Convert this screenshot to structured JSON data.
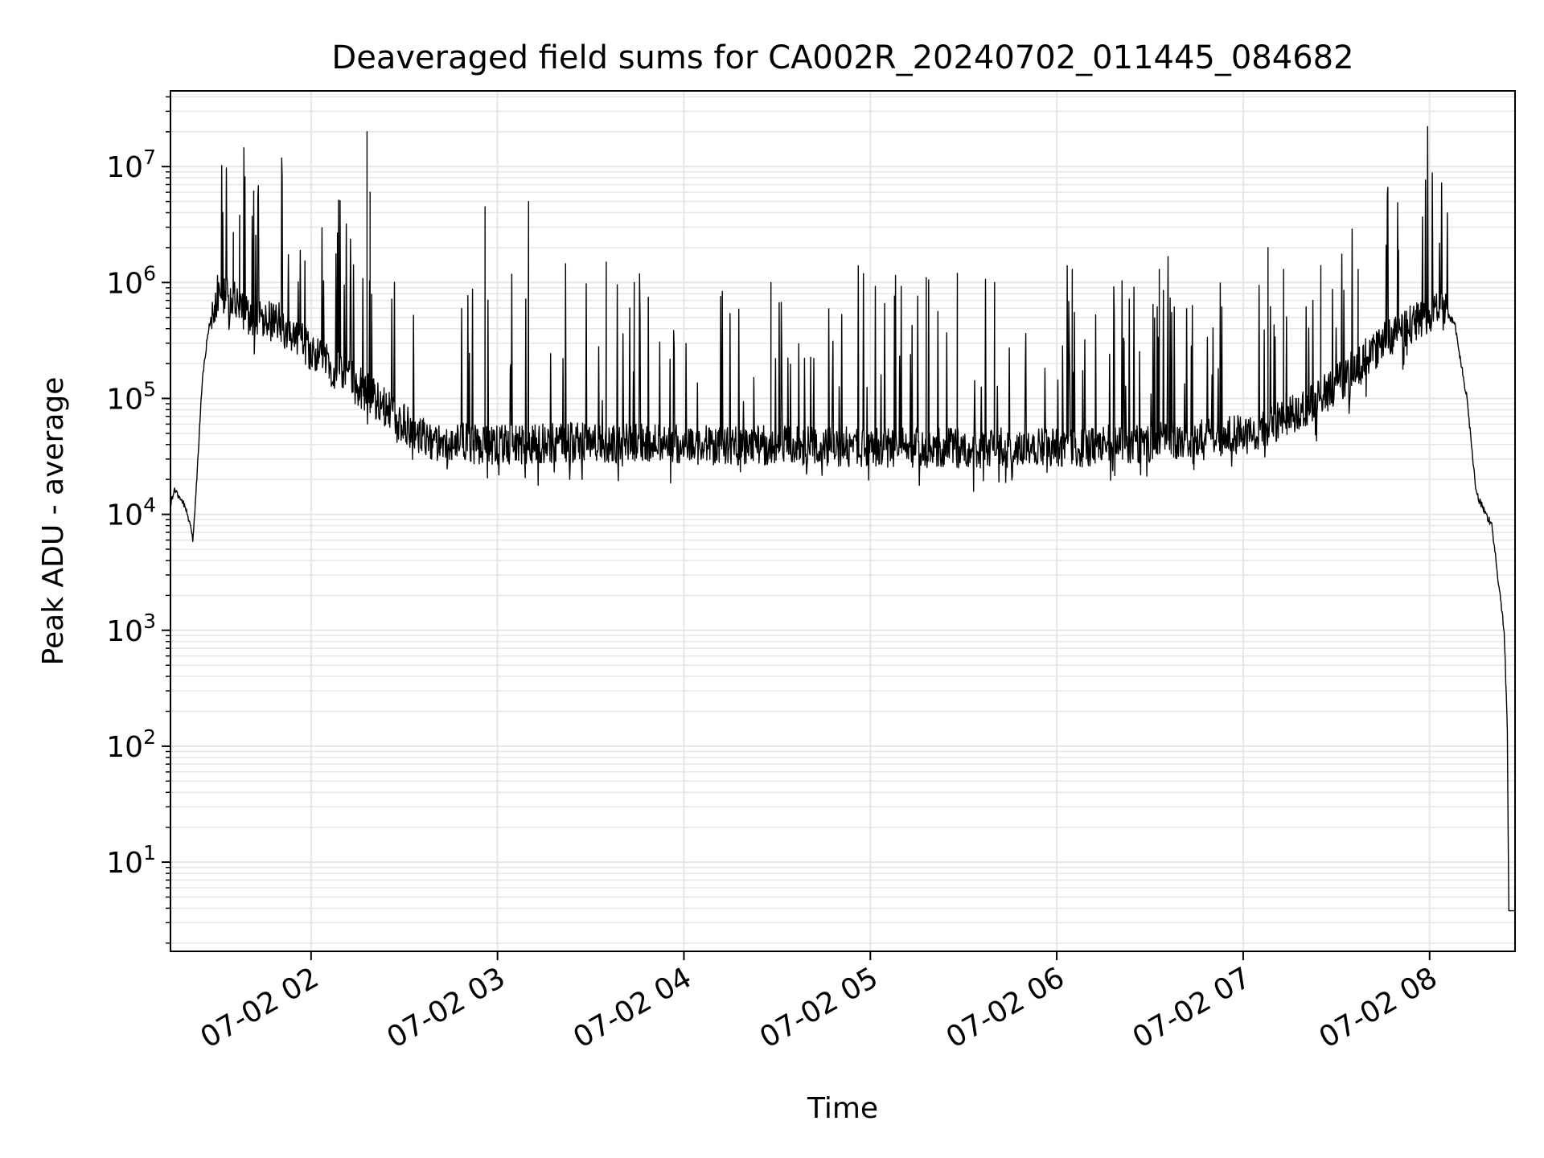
{
  "chart_data": {
    "type": "line",
    "title": "Deaveraged field sums for CA002R_20240702_011445_084682",
    "xlabel": "Time",
    "ylabel": "Peak ADU - average",
    "xscale": "time",
    "yscale": "log",
    "xlim": [
      "2024-07-02T01:14:45",
      "2024-07-02T08:27:30"
    ],
    "ylim": [
      1.7,
      45000000
    ],
    "grid": true,
    "legend": "none",
    "line_color": "#000000",
    "grid_color": "#e6e6e6",
    "x_ticks": [
      {
        "value": "2024-07-02T02:00:00",
        "label": "07-02 02"
      },
      {
        "value": "2024-07-02T03:00:00",
        "label": "07-02 03"
      },
      {
        "value": "2024-07-02T04:00:00",
        "label": "07-02 04"
      },
      {
        "value": "2024-07-02T05:00:00",
        "label": "07-02 05"
      },
      {
        "value": "2024-07-02T06:00:00",
        "label": "07-02 06"
      },
      {
        "value": "2024-07-02T07:00:00",
        "label": "07-02 07"
      },
      {
        "value": "2024-07-02T08:00:00",
        "label": "07-02 08"
      }
    ],
    "y_ticks": [
      {
        "value": 10,
        "base": "10",
        "exp": "1"
      },
      {
        "value": 100,
        "base": "10",
        "exp": "2"
      },
      {
        "value": 1000,
        "base": "10",
        "exp": "3"
      },
      {
        "value": 10000,
        "base": "10",
        "exp": "4"
      },
      {
        "value": 100000,
        "base": "10",
        "exp": "5"
      },
      {
        "value": 1000000,
        "base": "10",
        "exp": "6"
      },
      {
        "value": 10000000,
        "base": "10",
        "exp": "7"
      }
    ],
    "series": [
      {
        "baseline": [
          [
            "2024-07-02T01:14:45",
            12000
          ],
          [
            "2024-07-02T01:16:00",
            16000
          ],
          [
            "2024-07-02T01:18:00",
            14000
          ],
          [
            "2024-07-02T01:20:00",
            11000
          ],
          [
            "2024-07-02T01:22:00",
            6000
          ],
          [
            "2024-07-02T01:23:00",
            16000
          ],
          [
            "2024-07-02T01:25:00",
            150000
          ],
          [
            "2024-07-02T01:27:00",
            400000
          ],
          [
            "2024-07-02T01:30:00",
            800000
          ],
          [
            "2024-07-02T01:35:00",
            800000
          ],
          [
            "2024-07-02T01:40:00",
            500000
          ],
          [
            "2024-07-02T01:50:00",
            450000
          ],
          [
            "2024-07-02T02:00:00",
            250000
          ],
          [
            "2024-07-02T02:15:00",
            130000
          ],
          [
            "2024-07-02T02:30:00",
            60000
          ],
          [
            "2024-07-02T02:40:00",
            42000
          ],
          [
            "2024-07-02T03:00:00",
            40000
          ],
          [
            "2024-07-02T03:30:00",
            42000
          ],
          [
            "2024-07-02T04:00:00",
            40000
          ],
          [
            "2024-07-02T05:00:00",
            38000
          ],
          [
            "2024-07-02T06:00:00",
            37000
          ],
          [
            "2024-07-02T06:30:00",
            42000
          ],
          [
            "2024-07-02T07:00:00",
            48000
          ],
          [
            "2024-07-02T07:15:00",
            70000
          ],
          [
            "2024-07-02T07:30:00",
            130000
          ],
          [
            "2024-07-02T07:45:00",
            300000
          ],
          [
            "2024-07-02T08:00:00",
            550000
          ],
          [
            "2024-07-02T08:03:00",
            630000
          ],
          [
            "2024-07-02T08:08:00",
            450000
          ],
          [
            "2024-07-02T08:12:00",
            100000
          ],
          [
            "2024-07-02T08:15:00",
            15000
          ],
          [
            "2024-07-02T08:20:00",
            8000
          ],
          [
            "2024-07-02T08:24:00",
            1000
          ],
          [
            "2024-07-02T08:25:00",
            150
          ],
          [
            "2024-07-02T08:25:30",
            3.8
          ],
          [
            "2024-07-02T08:27:30",
            3.8
          ]
        ],
        "spikes": [
          [
            "2024-07-02T01:35:00",
            2700000
          ],
          [
            "2024-07-02T01:37:00",
            3800000
          ],
          [
            "2024-07-02T02:18:00",
            20000000
          ],
          [
            "2024-07-02T02:19:00",
            6000000
          ],
          [
            "2024-07-02T02:56:00",
            4500000
          ],
          [
            "2024-07-02T03:10:00",
            5000000
          ],
          [
            "2024-07-02T03:35:00",
            1500000
          ],
          [
            "2024-07-02T03:44:00",
            1000000
          ],
          [
            "2024-07-02T04:28:00",
            1000000
          ],
          [
            "2024-07-02T05:18:00",
            1100000
          ],
          [
            "2024-07-02T05:28:00",
            1200000
          ],
          [
            "2024-07-02T05:40:00",
            1000000
          ],
          [
            "2024-07-02T06:05:00",
            1300000
          ],
          [
            "2024-07-02T06:33:00",
            1300000
          ],
          [
            "2024-07-02T07:08:00",
            2000000
          ],
          [
            "2024-07-02T07:13:00",
            1300000
          ],
          [
            "2024-07-02T07:25:00",
            1400000
          ],
          [
            "2024-07-02T07:37:00",
            1300000
          ],
          [
            "2024-07-02T07:46:00",
            2100000
          ],
          [
            "2024-07-02T07:50:00",
            1900000
          ],
          [
            "2024-07-02T08:04:00",
            1400000
          ]
        ]
      }
    ]
  }
}
